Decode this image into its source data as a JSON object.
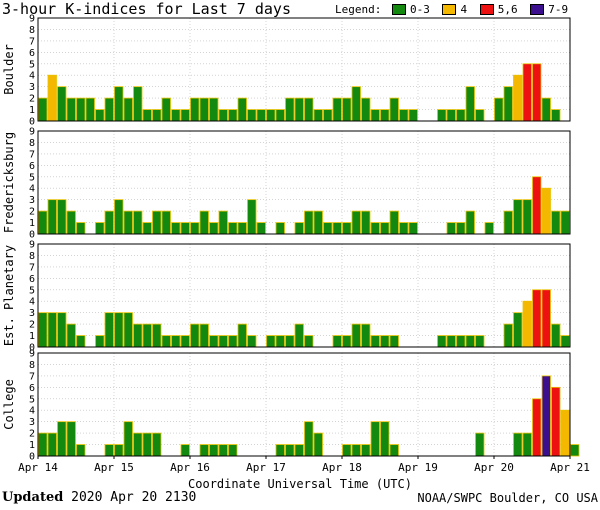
{
  "title": "3-hour K-indices for Last 7 days",
  "legend": {
    "label": "Legend:",
    "items": [
      {
        "label": "0-3",
        "color": "#13890f"
      },
      {
        "label": "4",
        "color": "#f5b800"
      },
      {
        "label": "5,6",
        "color": "#ee1111"
      },
      {
        "label": "7-9",
        "color": "#3c0f8f"
      }
    ]
  },
  "footer": {
    "updated_label": "Updated",
    "updated_value": "2020 Apr 20 2130",
    "credit": "NOAA/SWPC Boulder, CO USA"
  },
  "chart_data": {
    "type": "bar",
    "title": "3-hour K-indices for Last 7 days",
    "xlabel": "Coordinate Universal Time (UTC)",
    "x_ticks": [
      "Apr 14",
      "Apr 15",
      "Apr 16",
      "Apr 17",
      "Apr 18",
      "Apr 19",
      "Apr 20",
      "Apr 21"
    ],
    "ylim": [
      0,
      9
    ],
    "y_ticks": [
      "0",
      "1",
      "2",
      "3",
      "4",
      "5",
      "6",
      "7",
      "8",
      "9"
    ],
    "bins_per_day": 8,
    "grid": true,
    "panels": [
      {
        "name": "Boulder",
        "values": [
          2,
          4,
          3,
          2,
          2,
          2,
          1,
          2,
          3,
          2,
          3,
          1,
          1,
          2,
          1,
          1,
          2,
          2,
          2,
          1,
          1,
          2,
          1,
          1,
          1,
          1,
          2,
          2,
          2,
          1,
          1,
          2,
          2,
          3,
          2,
          1,
          1,
          2,
          1,
          1,
          0,
          0,
          1,
          1,
          1,
          3,
          1,
          0,
          2,
          3,
          4,
          5,
          5,
          2,
          1,
          0
        ]
      },
      {
        "name": "Fredericksburg",
        "values": [
          2,
          3,
          3,
          2,
          1,
          0,
          1,
          2,
          3,
          2,
          2,
          1,
          2,
          2,
          1,
          1,
          1,
          2,
          1,
          2,
          1,
          1,
          3,
          1,
          0,
          1,
          0,
          1,
          2,
          2,
          1,
          1,
          1,
          2,
          2,
          1,
          1,
          2,
          1,
          1,
          0,
          0,
          0,
          1,
          1,
          2,
          0,
          1,
          0,
          2,
          3,
          3,
          5,
          4,
          2,
          2,
          0
        ]
      },
      {
        "name": "Est. Planetary",
        "values": [
          3,
          3,
          3,
          2,
          1,
          0,
          1,
          3,
          3,
          3,
          2,
          2,
          2,
          1,
          1,
          1,
          2,
          2,
          1,
          1,
          1,
          2,
          1,
          0,
          1,
          1,
          1,
          2,
          1,
          0,
          0,
          1,
          1,
          2,
          2,
          1,
          1,
          1,
          0,
          0,
          0,
          0,
          1,
          1,
          1,
          1,
          1,
          0,
          0,
          2,
          3,
          4,
          5,
          5,
          2,
          1,
          0
        ]
      },
      {
        "name": "College",
        "values": [
          2,
          2,
          3,
          3,
          1,
          0,
          0,
          1,
          1,
          3,
          2,
          2,
          2,
          0,
          0,
          1,
          0,
          1,
          1,
          1,
          1,
          0,
          0,
          0,
          0,
          1,
          1,
          1,
          3,
          2,
          0,
          0,
          1,
          1,
          1,
          3,
          3,
          1,
          0,
          0,
          0,
          0,
          0,
          0,
          0,
          0,
          2,
          0,
          0,
          0,
          2,
          2,
          5,
          7,
          6,
          4,
          1,
          0
        ]
      }
    ],
    "colors": {
      "0-3": "#13890f",
      "4": "#f5b800",
      "5,6": "#ee1111",
      "7-9": "#3c0f8f",
      "outline": "#e8c200"
    }
  }
}
